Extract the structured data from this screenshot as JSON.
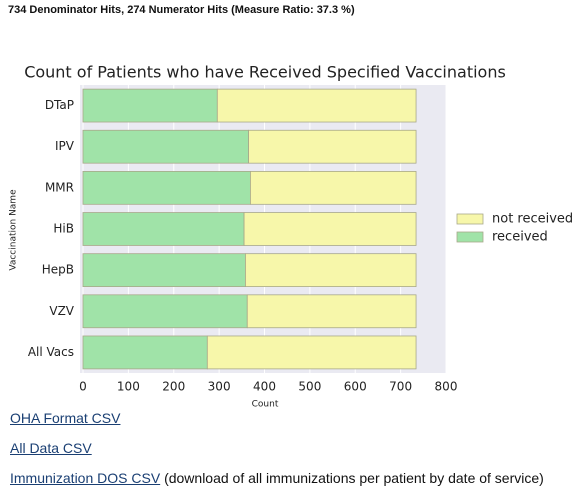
{
  "header": {
    "title": "734 Denominator Hits, 274 Numerator Hits (Measure Ratio: 37.3 %)"
  },
  "chart_data": {
    "type": "stacked_barh",
    "title": "Count of Patients who have Received Specified Vaccinations",
    "xlabel": "Count",
    "ylabel": "Vaccination Name",
    "categories": [
      "DTaP",
      "IPV",
      "MMR",
      "HiB",
      "HepB",
      "VZV",
      "All Vacs"
    ],
    "series": [
      {
        "name": "received",
        "color": "#a0e3a8",
        "values": [
          296,
          365,
          369,
          355,
          358,
          362,
          274
        ]
      },
      {
        "name": "not received",
        "color": "#f7f7aa",
        "values": [
          438,
          369,
          365,
          379,
          376,
          372,
          460
        ]
      }
    ],
    "xlim": [
      0,
      800
    ],
    "xticks": [
      0,
      100,
      200,
      300,
      400,
      500,
      600,
      700,
      800
    ],
    "legend": "right"
  },
  "links": [
    {
      "text": "OHA Format CSV"
    },
    {
      "text": "All Data CSV"
    },
    {
      "text": "Immunization DOS CSV",
      "note": "(download of all immunizations per patient by date of service)"
    }
  ]
}
